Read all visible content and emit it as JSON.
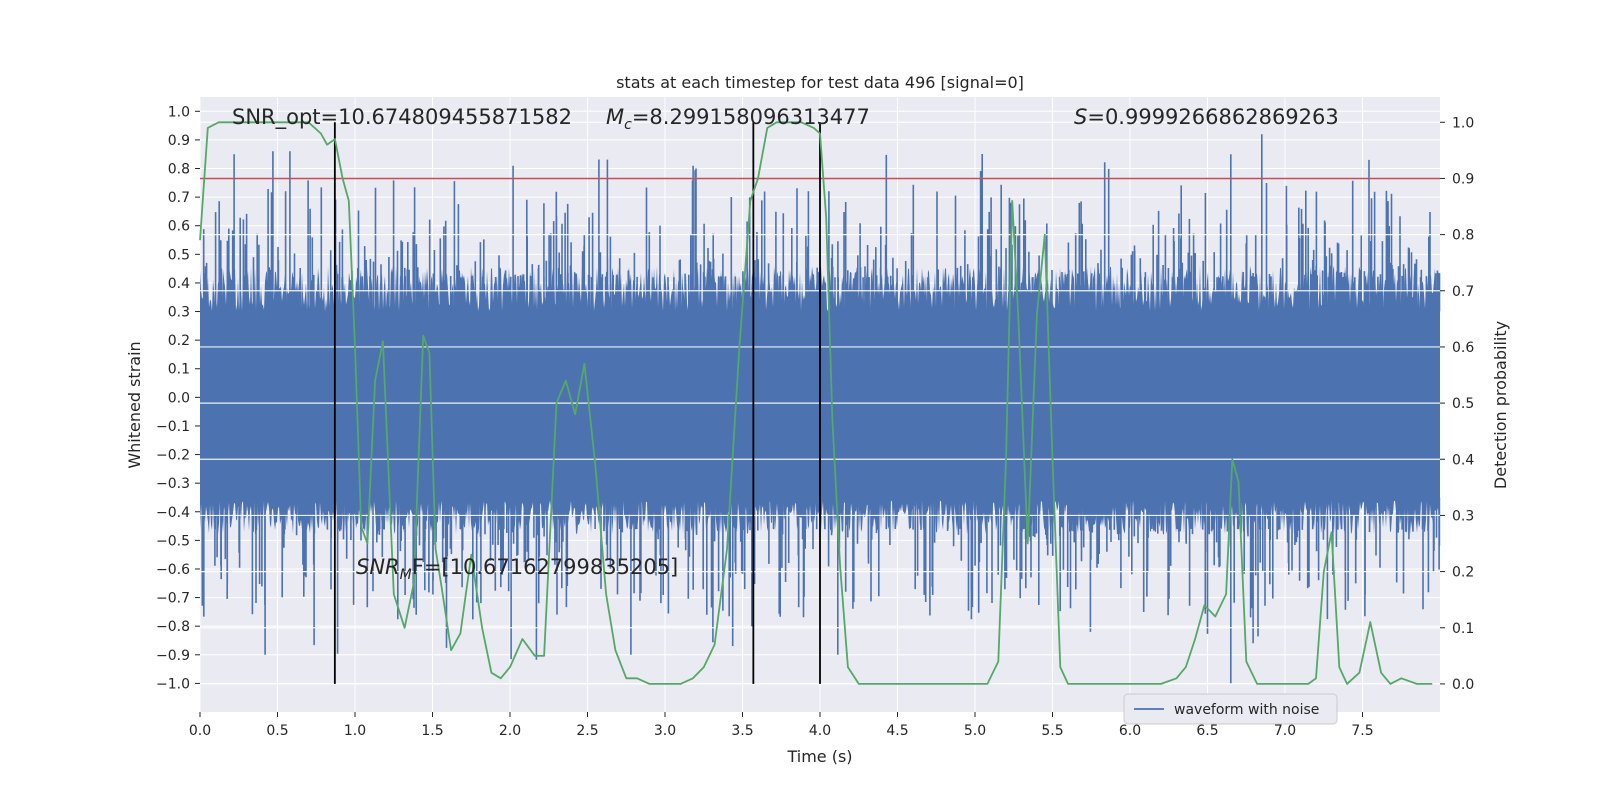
{
  "chart_data": {
    "type": "line",
    "title": "stats at each timestep for test data 496 [signal=0]",
    "xlabel": "Time (s)",
    "ylabel": "Whitened strain",
    "ylabel_right": "Detection probability",
    "xlim": [
      0.0,
      8.0
    ],
    "ylim": [
      -1.1,
      1.05
    ],
    "ylim_right": [
      -0.05,
      1.045
    ],
    "x_ticks": [
      0.0,
      0.5,
      1.0,
      1.5,
      2.0,
      2.5,
      3.0,
      3.5,
      4.0,
      4.5,
      5.0,
      5.5,
      6.0,
      6.5,
      7.0,
      7.5
    ],
    "x_tick_labels": [
      "0.0",
      "0.5",
      "1.0",
      "1.5",
      "2.0",
      "2.5",
      "3.0",
      "3.5",
      "4.0",
      "4.5",
      "5.0",
      "5.5",
      "6.0",
      "6.5",
      "7.0",
      "7.5"
    ],
    "y_ticks": [
      1.0,
      0.9,
      0.8,
      0.7,
      0.6,
      0.5,
      0.4,
      0.3,
      0.2,
      0.1,
      0.0,
      -0.1,
      -0.2,
      -0.3,
      -0.4,
      -0.5,
      -0.6,
      -0.7,
      -0.8,
      -0.9,
      -1.0
    ],
    "y_tick_labels": [
      "1.0",
      "0.9",
      "0.8",
      "0.7",
      "0.6",
      "0.5",
      "0.4",
      "0.3",
      "0.2",
      "0.1",
      "0.0",
      "−0.1",
      "−0.2",
      "−0.3",
      "−0.4",
      "−0.5",
      "−0.6",
      "−0.7",
      "−0.8",
      "−0.9",
      "−1.0"
    ],
    "y_ticks_right": [
      1.0,
      0.9,
      0.8,
      0.7,
      0.6,
      0.5,
      0.4,
      0.3,
      0.2,
      0.1,
      0.0
    ],
    "y_tick_labels_right": [
      "1.0",
      "0.9",
      "0.8",
      "0.7",
      "0.6",
      "0.5",
      "0.4",
      "0.3",
      "0.2",
      "0.1",
      "0.0"
    ],
    "grid": true,
    "series": [
      {
        "name": "waveform with noise",
        "axis": "left",
        "color": "#4c72b0",
        "style": "dense noise, typical envelope ±0.4–0.5 with spikes up to ±0.9"
      },
      {
        "name": "detection probability",
        "axis": "right",
        "color": "#55a868",
        "x": [
          0.0,
          0.05,
          0.12,
          0.2,
          0.3,
          0.4,
          0.5,
          0.6,
          0.7,
          0.78,
          0.82,
          0.87,
          0.92,
          0.96,
          1.0,
          1.04,
          1.08,
          1.13,
          1.18,
          1.25,
          1.32,
          1.38,
          1.44,
          1.48,
          1.52,
          1.56,
          1.62,
          1.68,
          1.75,
          1.82,
          1.88,
          1.94,
          2.0,
          2.08,
          2.16,
          2.22,
          2.3,
          2.36,
          2.42,
          2.48,
          2.55,
          2.62,
          2.68,
          2.75,
          2.82,
          2.9,
          3.0,
          3.1,
          3.18,
          3.25,
          3.32,
          3.4,
          3.48,
          3.55,
          3.6,
          3.66,
          3.72,
          3.8,
          3.88,
          3.96,
          4.0,
          4.04,
          4.08,
          4.13,
          4.18,
          4.25,
          4.32,
          4.4,
          4.5,
          4.6,
          4.7,
          4.8,
          4.9,
          5.0,
          5.08,
          5.15,
          5.2,
          5.24,
          5.28,
          5.34,
          5.4,
          5.45,
          5.5,
          5.55,
          5.6,
          5.7,
          5.8,
          5.9,
          6.0,
          6.1,
          6.2,
          6.3,
          6.36,
          6.42,
          6.48,
          6.55,
          6.62,
          6.66,
          6.7,
          6.75,
          6.82,
          6.9,
          7.0,
          7.1,
          7.15,
          7.2,
          7.25,
          7.3,
          7.35,
          7.4,
          7.48,
          7.55,
          7.62,
          7.68,
          7.75,
          7.85,
          7.95
        ],
        "values": [
          0.79,
          0.99,
          1.0,
          1.0,
          1.0,
          1.0,
          1.0,
          1.0,
          1.0,
          0.98,
          0.96,
          0.97,
          0.9,
          0.86,
          0.6,
          0.28,
          0.25,
          0.54,
          0.61,
          0.16,
          0.1,
          0.18,
          0.62,
          0.59,
          0.24,
          0.17,
          0.06,
          0.09,
          0.23,
          0.1,
          0.02,
          0.01,
          0.03,
          0.08,
          0.05,
          0.05,
          0.5,
          0.54,
          0.48,
          0.57,
          0.39,
          0.16,
          0.06,
          0.01,
          0.01,
          0.0,
          0.0,
          0.0,
          0.01,
          0.03,
          0.07,
          0.24,
          0.6,
          0.86,
          0.9,
          0.99,
          1.0,
          1.0,
          1.0,
          0.99,
          0.98,
          0.83,
          0.47,
          0.21,
          0.03,
          0.0,
          0.0,
          0.0,
          0.0,
          0.0,
          0.0,
          0.0,
          0.0,
          0.0,
          0.0,
          0.04,
          0.4,
          0.86,
          0.65,
          0.25,
          0.66,
          0.8,
          0.4,
          0.03,
          0.0,
          0.0,
          0.0,
          0.0,
          0.0,
          0.0,
          0.0,
          0.01,
          0.03,
          0.08,
          0.14,
          0.12,
          0.16,
          0.4,
          0.36,
          0.04,
          0.0,
          0.0,
          0.0,
          0.0,
          0.0,
          0.01,
          0.2,
          0.27,
          0.03,
          0.0,
          0.02,
          0.11,
          0.02,
          0.0,
          0.01,
          0.0,
          0.0
        ]
      }
    ],
    "threshold": {
      "axis": "right",
      "value": 0.9,
      "color": "#c44e52"
    },
    "vertical_lines": [
      0.87,
      3.57,
      4.0
    ],
    "annotations": {
      "snr_opt": "SNR_opt=10.674809455871582",
      "mc_symbol": "M",
      "mc_sub": "c",
      "mc_value": "=8.299158096313477",
      "s_symbol": "S",
      "s_value": "=0.9999266862869263",
      "snr_mf_symbol": "SNR",
      "snr_mf_sub": "M",
      "snr_mf_rest": "F=[10.67162799835205]"
    },
    "legend": {
      "label": "waveform with noise",
      "placement": "lower-right"
    }
  },
  "colors": {
    "plot_bg": "#eaeaf2",
    "grid": "#ffffff",
    "waveform": "#4c72b0",
    "probability": "#55a868",
    "threshold": "#c44e52",
    "vlines": "#000000"
  }
}
